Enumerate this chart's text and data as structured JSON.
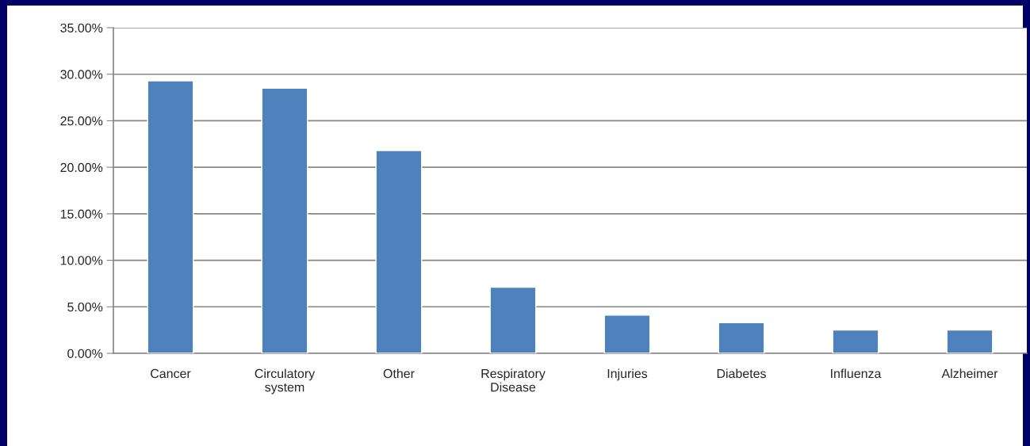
{
  "chart_data": {
    "type": "bar",
    "categories": [
      "Cancer",
      "Circulatory\nsystem",
      "Other",
      "Respiratory\nDisease",
      "Injuries",
      "Diabetes",
      "Influenza",
      "Alzheimer"
    ],
    "values": [
      29.3,
      28.5,
      21.8,
      7.1,
      4.1,
      3.3,
      2.5,
      2.5
    ],
    "color": "#4f81bd",
    "ylim": [
      0,
      35
    ],
    "yticks": [
      {
        "value": 0,
        "label": "0.00%"
      },
      {
        "value": 5,
        "label": "5.00%"
      },
      {
        "value": 10,
        "label": "10.00%"
      },
      {
        "value": 15,
        "label": "15.00%"
      },
      {
        "value": 20,
        "label": "20.00%"
      },
      {
        "value": 25,
        "label": "25.00%"
      },
      {
        "value": 30,
        "label": "30.00%"
      },
      {
        "value": 35,
        "label": "35.00%"
      }
    ],
    "grid": "y",
    "legend": false
  }
}
